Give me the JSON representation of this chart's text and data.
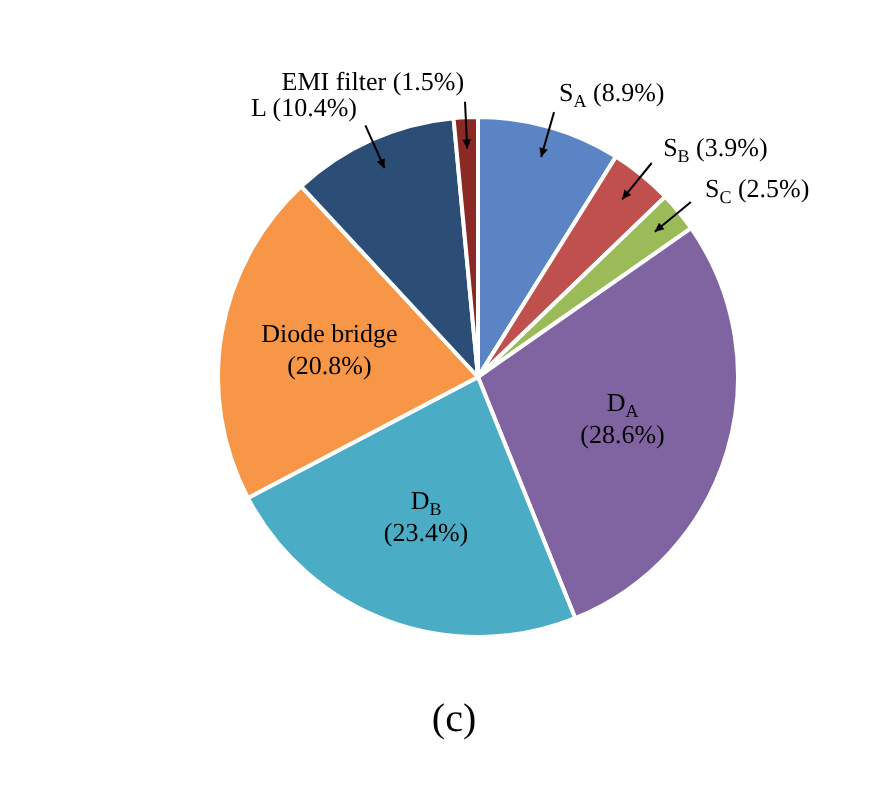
{
  "chart_data": {
    "type": "pie",
    "title": "(c)",
    "categories": [
      "S$_{A}$",
      "S$_{B}$",
      "S$_{C}$",
      "D$_{A}$",
      "D$_{B}$",
      "Diode bridge",
      "L",
      "EMI filter"
    ],
    "values": [
      8.9,
      3.9,
      2.5,
      28.6,
      23.4,
      20.8,
      10.4,
      1.5
    ],
    "colors": [
      "#5b84c4",
      "#c0504d",
      "#9bbb59",
      "#8064a2",
      "#4bacc6",
      "#f79646",
      "#2c4d75",
      "#8b2a25"
    ],
    "value_labels": [
      "(8.9%)",
      "(3.9%)",
      "(2.5%)",
      "(28.6%)",
      "(23.4%)",
      "(20.8%)",
      "(10.4%)",
      "(1.5%)"
    ],
    "legend": false
  }
}
